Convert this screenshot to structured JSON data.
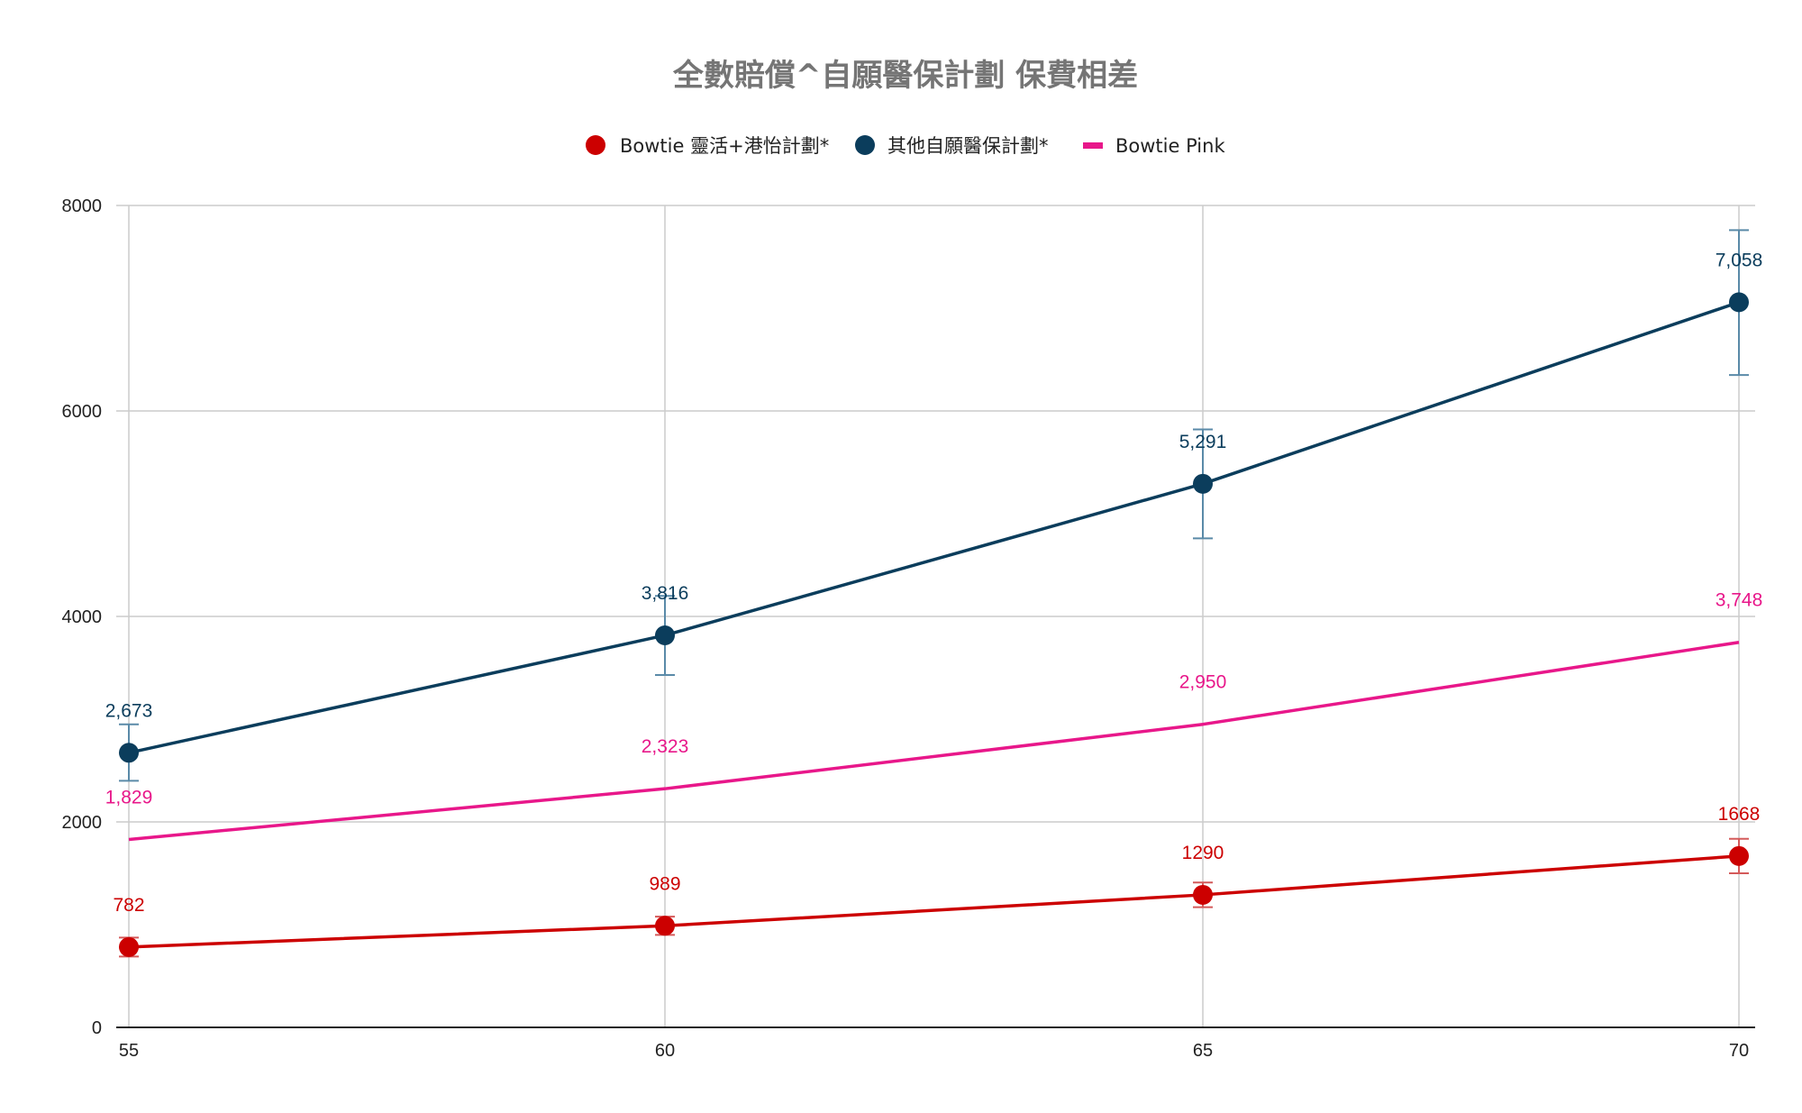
{
  "chart_data": {
    "type": "line",
    "title": "全數賠償^自願醫保計劃 保費相差",
    "xlabel": "",
    "ylabel": "",
    "x": [
      55,
      60,
      65,
      70
    ],
    "x_ticks": [
      "55",
      "60",
      "65",
      "70"
    ],
    "ylim": [
      0,
      8000
    ],
    "y_ticks": [
      "0",
      "2000",
      "4000",
      "6000",
      "8000"
    ],
    "grid": true,
    "legend_position": "top",
    "series": [
      {
        "name": "Bowtie 靈活+港怡計劃*",
        "values": [
          782,
          989,
          1290,
          1668
        ],
        "labels": [
          "782",
          "989",
          "1290",
          "1668"
        ],
        "color": "#cc0000",
        "marker": "circle",
        "error_bars": [
          [
            690,
            874
          ],
          [
            900,
            1078
          ],
          [
            1170,
            1410
          ],
          [
            1500,
            1836
          ]
        ]
      },
      {
        "name": "其他自願醫保計劃*",
        "values": [
          2673,
          3816,
          5291,
          7058
        ],
        "labels": [
          "2,673",
          "3,816",
          "5,291",
          "7,058"
        ],
        "color": "#0b3d5c",
        "marker": "circle",
        "error_bars": [
          [
            2400,
            2950
          ],
          [
            3430,
            4200
          ],
          [
            4760,
            5820
          ],
          [
            6350,
            7760
          ]
        ]
      },
      {
        "name": "Bowtie Pink",
        "values": [
          1829,
          2323,
          2950,
          3748
        ],
        "labels": [
          "1,829",
          "2,323",
          "2,950",
          "3,748"
        ],
        "color": "#e8178a",
        "marker": "none",
        "error_bars": []
      }
    ]
  }
}
